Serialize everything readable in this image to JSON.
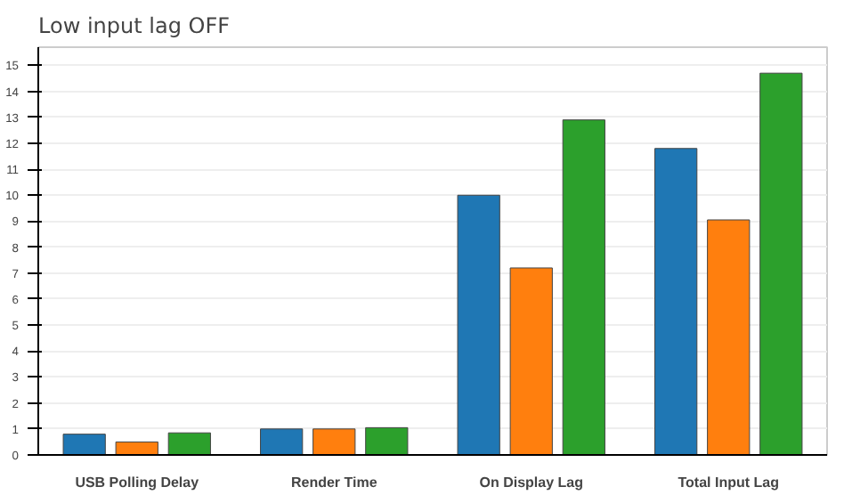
{
  "chart_data": {
    "type": "bar",
    "title": "Low input lag OFF",
    "categories": [
      "USB Polling Delay",
      "Render Time",
      "On Display Lag",
      "Total Input Lag"
    ],
    "series": [
      {
        "color": "#1f77b4",
        "values": [
          0.8,
          1.0,
          10.0,
          11.8
        ]
      },
      {
        "color": "#ff7f0e",
        "values": [
          0.5,
          1.0,
          7.2,
          9.05
        ]
      },
      {
        "color": "#2ca02c",
        "values": [
          0.85,
          1.05,
          12.9,
          14.7
        ]
      }
    ],
    "ylim": [
      0,
      15.7
    ],
    "yticks": [
      0,
      1,
      2,
      3,
      4,
      5,
      6,
      7,
      8,
      9,
      10,
      11,
      12,
      13,
      14,
      15
    ],
    "grid": "y"
  }
}
